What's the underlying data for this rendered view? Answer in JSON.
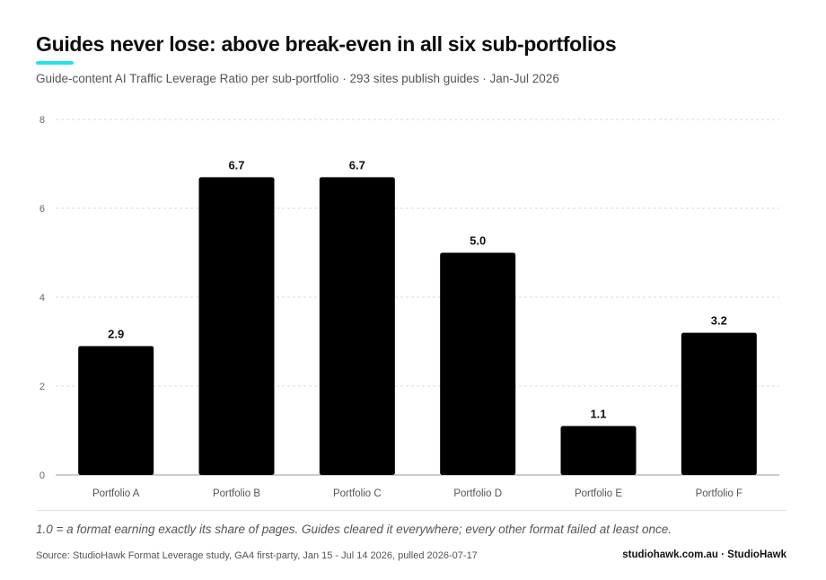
{
  "header": {
    "title": "Guides never lose: above break-even in all six sub-portfolios",
    "subtitle": "Guide-content AI Traffic Leverage Ratio per sub-portfolio · 293 sites publish guides · Jan-Jul 2026"
  },
  "colors": {
    "accent": "#22e3ec",
    "bar": "#000000",
    "grid": "#d8d8d8",
    "text": "#111111"
  },
  "chart_data": {
    "type": "bar",
    "categories": [
      "Portfolio A",
      "Portfolio B",
      "Portfolio C",
      "Portfolio D",
      "Portfolio E",
      "Portfolio F"
    ],
    "values": [
      2.9,
      6.7,
      6.7,
      5.0,
      1.1,
      3.2
    ],
    "value_labels": [
      "2.9",
      "6.7",
      "6.7",
      "5.0",
      "1.1",
      "3.2"
    ],
    "ylim": [
      0,
      8
    ],
    "yticks": [
      0,
      2,
      4,
      6,
      8
    ],
    "grid": true,
    "xlabel": "",
    "ylabel": ""
  },
  "footer": {
    "note": "1.0 = a format earning exactly its share of pages. Guides cleared it everywhere; every other format failed at least once.",
    "source": "Source: StudioHawk Format Leverage study, GA4 first-party, Jan 15 - Jul 14 2026, pulled 2026-07-17",
    "brand": "studiohawk.com.au · StudioHawk"
  }
}
